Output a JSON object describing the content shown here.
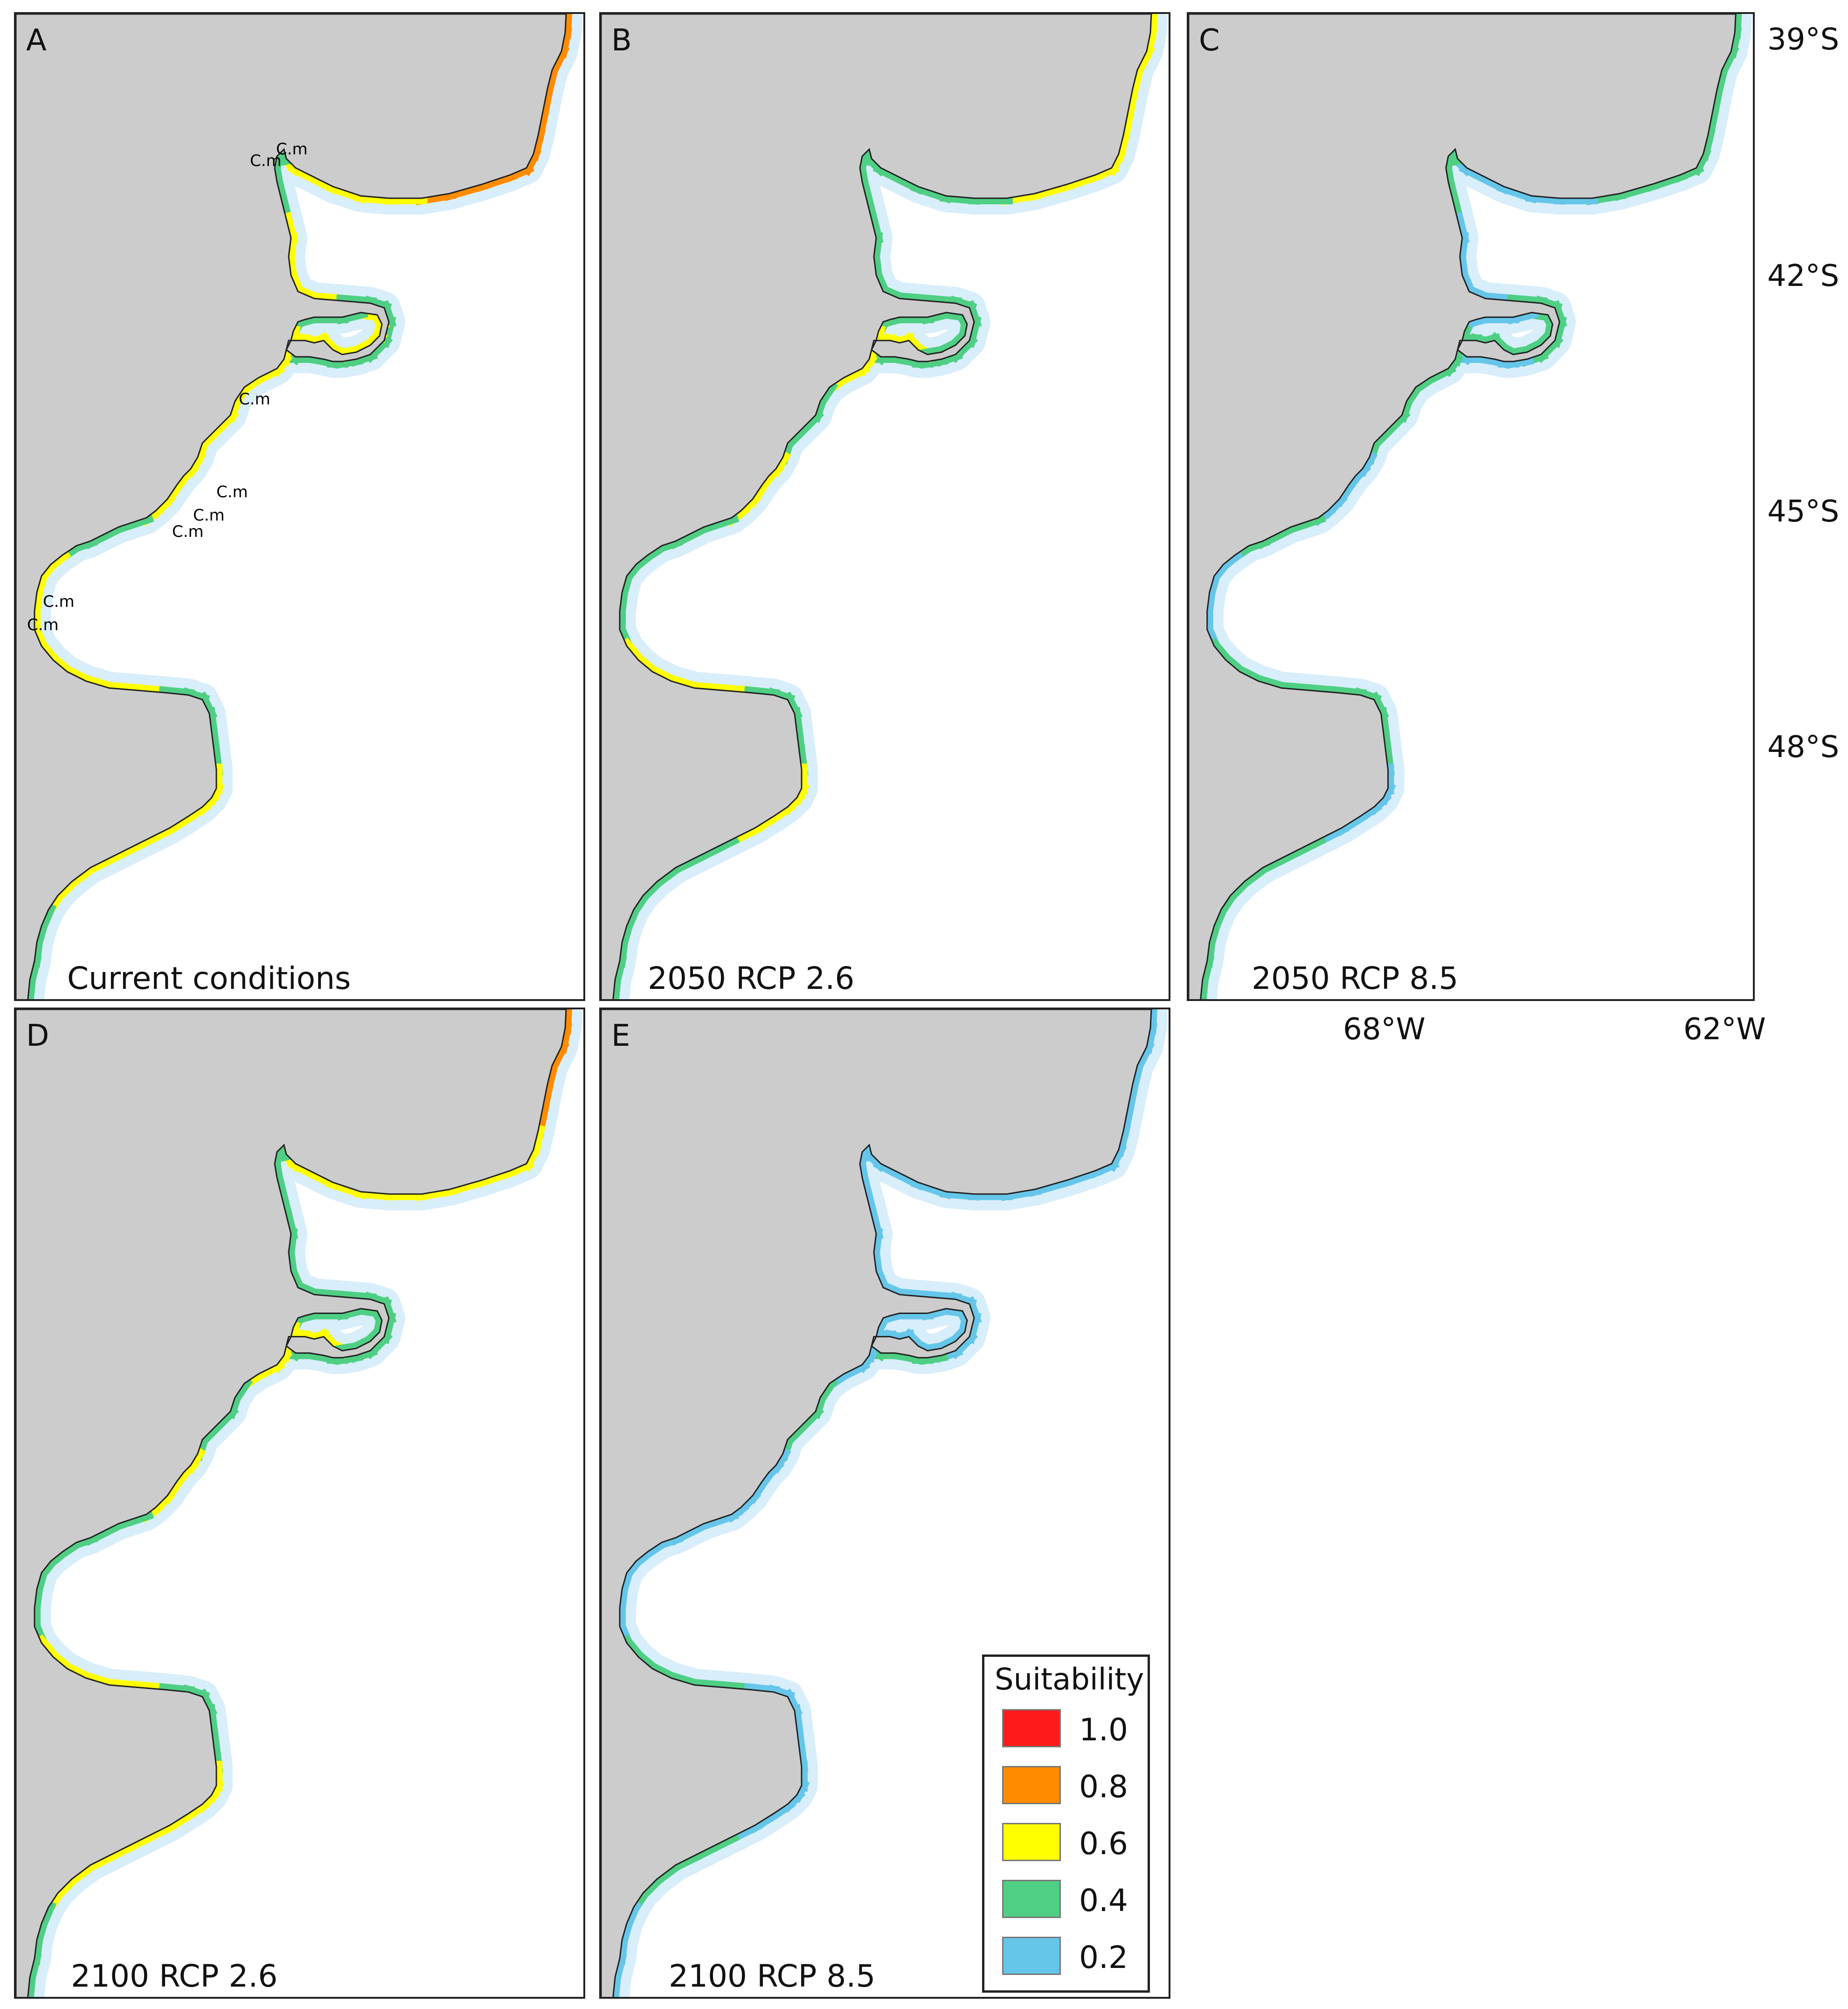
{
  "panels": [
    {
      "id": "A",
      "letter": "A",
      "caption": "Current conditions"
    },
    {
      "id": "B",
      "letter": "B",
      "caption": "2050   RCP 2.6"
    },
    {
      "id": "C",
      "letter": "C",
      "caption": "2050 RCP 8.5"
    },
    {
      "id": "D",
      "letter": "D",
      "caption": "2100 RCP 2.6"
    },
    {
      "id": "E",
      "letter": "E",
      "caption": "2100 RCP 8.5"
    }
  ],
  "latitude_labels": [
    "39°S",
    "42°S",
    "45°S",
    "48°S"
  ],
  "longitude_labels": [
    "68°W",
    "62°W"
  ],
  "occurrence_marker": "C.m",
  "legend": {
    "title": "Suitability",
    "items": [
      {
        "label": "1.0",
        "color": "#ff1a1a"
      },
      {
        "label": "0.8",
        "color": "#ff8c00"
      },
      {
        "label": "0.6",
        "color": "#ffff00"
      },
      {
        "label": "0.4",
        "color": "#4fcf84"
      },
      {
        "label": "0.2",
        "color": "#66c6ea"
      }
    ]
  },
  "colors": {
    "land": "#cccccc",
    "sea": "#ffffff",
    "coastline": "#222222",
    "halo": "#d8eefa"
  }
}
